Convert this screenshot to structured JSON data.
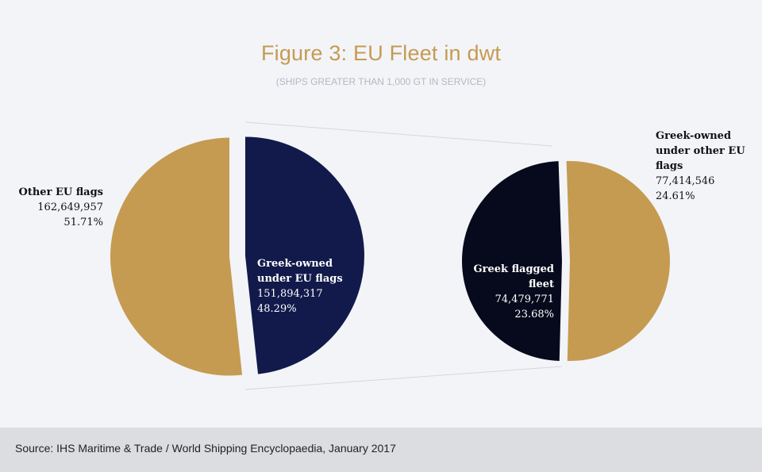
{
  "chart_data": [
    {
      "type": "pie",
      "title": "Figure 3: EU Fleet in dwt",
      "subtitle": "(SHIPS GREATER THAN 1,000 GT IN SERVICE)",
      "slices": [
        {
          "name": "Other EU flags",
          "value": "162,649,957",
          "percent": "51.71%",
          "pct": 51.71,
          "color": "#c59b52"
        },
        {
          "name": "Greek-owned under EU flags",
          "value": "151,894,317",
          "percent": "48.29%",
          "pct": 48.29,
          "color": "#111a4a"
        }
      ]
    },
    {
      "type": "pie",
      "slices": [
        {
          "name": "Greek flagged fleet",
          "value": "74,479,771",
          "percent": "23.68%",
          "pct": 23.68,
          "color": "#070a1c"
        },
        {
          "name": "Greek-owned under other EU flags",
          "value": "77,414,546",
          "percent": "24.61%",
          "pct": 24.61,
          "color": "#c59b52"
        }
      ]
    }
  ],
  "source": "Source: IHS Maritime & Trade / World Shipping Encyclopaedia, January 2017"
}
